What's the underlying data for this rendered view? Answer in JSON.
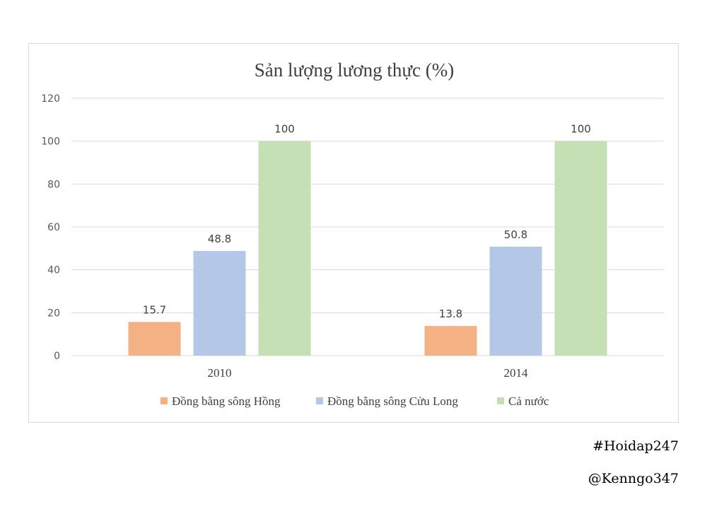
{
  "chart_data": {
    "type": "bar",
    "title": "Sản lượng lương thực (%)",
    "categories": [
      "2010",
      "2014"
    ],
    "series": [
      {
        "name": "Đồng bằng sông Hồng",
        "values": [
          15.7,
          13.8
        ],
        "color": "#f4b183"
      },
      {
        "name": "Đồng bằng sông Cửu Long",
        "values": [
          48.8,
          50.8
        ],
        "color": "#b4c7e7"
      },
      {
        "name": "Cả nước",
        "values": [
          100,
          100
        ],
        "color": "#c5e0b4"
      }
    ],
    "data_labels": [
      [
        "15.7",
        "48.8",
        "100"
      ],
      [
        "13.8",
        "50.8",
        "100"
      ]
    ],
    "yticks": [
      "0",
      "20",
      "40",
      "60",
      "80",
      "100",
      "120"
    ],
    "ylim": [
      0,
      120
    ],
    "grid": true,
    "legend_position": "bottom"
  },
  "watermarks": {
    "hashtag": "#Hoidap247",
    "author": "@Kenngo347"
  }
}
